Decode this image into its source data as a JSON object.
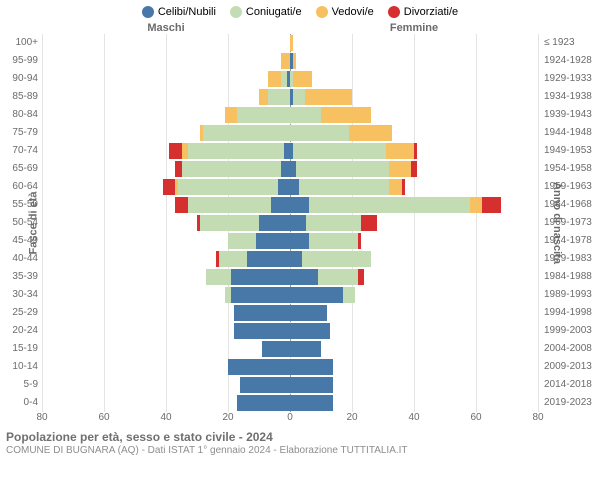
{
  "legend": [
    {
      "label": "Celibi/Nubili",
      "color": "#4878a8"
    },
    {
      "label": "Coniugati/e",
      "color": "#c4dcb4"
    },
    {
      "label": "Vedovi/e",
      "color": "#f7c162"
    },
    {
      "label": "Divorziati/e",
      "color": "#d62f2f"
    }
  ],
  "gender_labels": {
    "male": "Maschi",
    "female": "Femmine"
  },
  "axis_left_label": "Fasce di età",
  "axis_right_label": "Anno di nascita",
  "x_ticks": [
    80,
    60,
    40,
    20,
    0,
    20,
    40,
    60,
    80
  ],
  "x_max": 80,
  "age_labels": [
    "100+",
    "95-99",
    "90-94",
    "85-89",
    "80-84",
    "75-79",
    "70-74",
    "65-69",
    "60-64",
    "55-59",
    "50-54",
    "45-49",
    "40-44",
    "35-39",
    "30-34",
    "25-29",
    "20-24",
    "15-19",
    "10-14",
    "5-9",
    "0-4"
  ],
  "birth_labels": [
    "≤ 1923",
    "1924-1928",
    "1929-1933",
    "1934-1938",
    "1939-1943",
    "1944-1948",
    "1949-1953",
    "1954-1958",
    "1959-1963",
    "1964-1968",
    "1969-1973",
    "1974-1978",
    "1979-1983",
    "1984-1988",
    "1989-1993",
    "1994-1998",
    "1999-2003",
    "2004-2008",
    "2009-2013",
    "2014-2018",
    "2019-2023"
  ],
  "colors": {
    "celibi": "#4878a8",
    "coniugati": "#c4dcb4",
    "vedovi": "#f7c162",
    "divorziati": "#d62f2f",
    "grid": "#e4e4e4",
    "center": "#9a9a9a",
    "text": "#6b6b6b",
    "bg": "#ffffff"
  },
  "typography": {
    "legend_fontsize": 11,
    "ticks_fontsize": 10,
    "title_fontsize": 12,
    "subtitle_fontsize": 10
  },
  "rows": [
    {
      "m": {
        "cel": 0,
        "con": 0,
        "ved": 0,
        "div": 0
      },
      "f": {
        "cel": 0,
        "con": 0,
        "ved": 1,
        "div": 0
      }
    },
    {
      "m": {
        "cel": 0,
        "con": 0,
        "ved": 3,
        "div": 0
      },
      "f": {
        "cel": 1,
        "con": 0,
        "ved": 1,
        "div": 0
      }
    },
    {
      "m": {
        "cel": 1,
        "con": 2,
        "ved": 4,
        "div": 0
      },
      "f": {
        "cel": 0,
        "con": 1,
        "ved": 6,
        "div": 0
      }
    },
    {
      "m": {
        "cel": 0,
        "con": 7,
        "ved": 3,
        "div": 0
      },
      "f": {
        "cel": 1,
        "con": 4,
        "ved": 15,
        "div": 0
      }
    },
    {
      "m": {
        "cel": 0,
        "con": 17,
        "ved": 4,
        "div": 0
      },
      "f": {
        "cel": 0,
        "con": 10,
        "ved": 16,
        "div": 0
      }
    },
    {
      "m": {
        "cel": 0,
        "con": 28,
        "ved": 1,
        "div": 0
      },
      "f": {
        "cel": 0,
        "con": 19,
        "ved": 14,
        "div": 0
      }
    },
    {
      "m": {
        "cel": 2,
        "con": 31,
        "ved": 2,
        "div": 4
      },
      "f": {
        "cel": 1,
        "con": 30,
        "ved": 9,
        "div": 1
      }
    },
    {
      "m": {
        "cel": 3,
        "con": 32,
        "ved": 0,
        "div": 2
      },
      "f": {
        "cel": 2,
        "con": 30,
        "ved": 7,
        "div": 2
      }
    },
    {
      "m": {
        "cel": 4,
        "con": 32,
        "ved": 1,
        "div": 4
      },
      "f": {
        "cel": 3,
        "con": 29,
        "ved": 4,
        "div": 1
      }
    },
    {
      "m": {
        "cel": 6,
        "con": 27,
        "ved": 0,
        "div": 4
      },
      "f": {
        "cel": 6,
        "con": 52,
        "ved": 4,
        "div": 6
      }
    },
    {
      "m": {
        "cel": 10,
        "con": 19,
        "ved": 0,
        "div": 1
      },
      "f": {
        "cel": 5,
        "con": 18,
        "ved": 0,
        "div": 5
      }
    },
    {
      "m": {
        "cel": 11,
        "con": 9,
        "ved": 0,
        "div": 0
      },
      "f": {
        "cel": 6,
        "con": 16,
        "ved": 0,
        "div": 1
      }
    },
    {
      "m": {
        "cel": 14,
        "con": 9,
        "ved": 0,
        "div": 1
      },
      "f": {
        "cel": 4,
        "con": 22,
        "ved": 0,
        "div": 0
      }
    },
    {
      "m": {
        "cel": 19,
        "con": 8,
        "ved": 0,
        "div": 0
      },
      "f": {
        "cel": 9,
        "con": 13,
        "ved": 0,
        "div": 2
      }
    },
    {
      "m": {
        "cel": 19,
        "con": 2,
        "ved": 0,
        "div": 0
      },
      "f": {
        "cel": 17,
        "con": 4,
        "ved": 0,
        "div": 0
      }
    },
    {
      "m": {
        "cel": 18,
        "con": 0,
        "ved": 0,
        "div": 0
      },
      "f": {
        "cel": 12,
        "con": 0,
        "ved": 0,
        "div": 0
      }
    },
    {
      "m": {
        "cel": 18,
        "con": 0,
        "ved": 0,
        "div": 0
      },
      "f": {
        "cel": 13,
        "con": 0,
        "ved": 0,
        "div": 0
      }
    },
    {
      "m": {
        "cel": 9,
        "con": 0,
        "ved": 0,
        "div": 0
      },
      "f": {
        "cel": 10,
        "con": 0,
        "ved": 0,
        "div": 0
      }
    },
    {
      "m": {
        "cel": 20,
        "con": 0,
        "ved": 0,
        "div": 0
      },
      "f": {
        "cel": 14,
        "con": 0,
        "ved": 0,
        "div": 0
      }
    },
    {
      "m": {
        "cel": 16,
        "con": 0,
        "ved": 0,
        "div": 0
      },
      "f": {
        "cel": 14,
        "con": 0,
        "ved": 0,
        "div": 0
      }
    },
    {
      "m": {
        "cel": 17,
        "con": 0,
        "ved": 0,
        "div": 0
      },
      "f": {
        "cel": 14,
        "con": 0,
        "ved": 0,
        "div": 0
      }
    }
  ],
  "title": "Popolazione per età, sesso e stato civile - 2024",
  "subtitle": "COMUNE DI BUGNARA (AQ) - Dati ISTAT 1° gennaio 2024 - Elaborazione TUTTITALIA.IT"
}
